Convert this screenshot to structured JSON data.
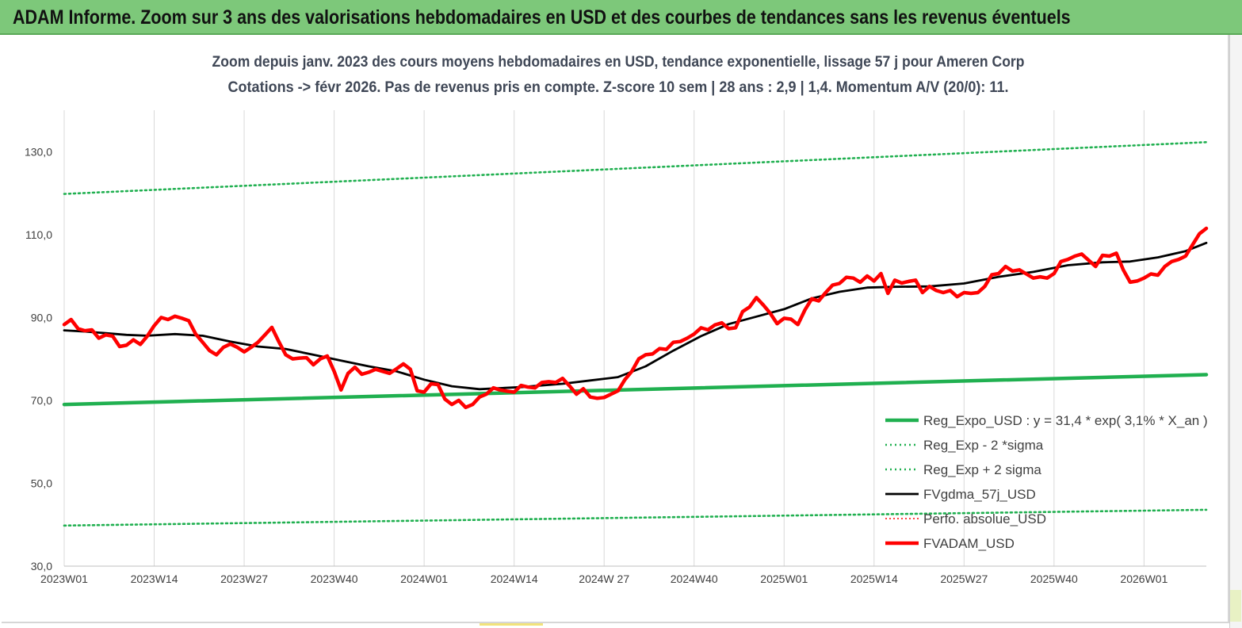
{
  "banner": {
    "title": "ADAM Informe. Zoom sur 3 ans des valorisations hebdomadaires en USD et des courbes de tendances sans les revenus éventuels"
  },
  "chart_data": {
    "type": "line",
    "title_line1": "Zoom depuis janv. 2023 des cours moyens hebdomadaires en USD, tendance exponentielle, lissage 57 j pour Ameren Corp",
    "title_line2": "Cotations -> févr 2026.  Pas de revenus pris en compte. Z-score 10 sem  | 28 ans : 2,9  | 1,4. Momentum A/V (20/0): 11.",
    "xlabel": "",
    "ylabel": "",
    "ylim": [
      30,
      140
    ],
    "yticks": [
      "30,0",
      "50,0",
      "70,0",
      "90,0",
      "110,0",
      "130,0"
    ],
    "ytick_values": [
      30,
      50,
      70,
      90,
      110,
      130
    ],
    "grid": "vertical",
    "x_categories": [
      "2023W01",
      "2023W14",
      "2023W27",
      "2023W40",
      "2024W01",
      "2024W14",
      "2024W 27",
      "2024W40",
      "2025W01",
      "2025W14",
      "2025W27",
      "2025W40",
      "2026W01"
    ],
    "x_category_weeks": [
      0,
      13,
      26,
      39,
      52,
      65,
      78,
      91,
      104,
      117,
      130,
      143,
      156
    ],
    "x_max_week": 165,
    "legend_placement": "bottom-right",
    "series": [
      {
        "name": "Reg_Expo_USD : y = 31,4 * exp( 3,1% *  X_an )",
        "color": "#20b050",
        "style": "solid-thick",
        "points": [
          [
            0,
            69.0
          ],
          [
            165,
            76.2
          ]
        ]
      },
      {
        "name": "Reg_Exp - 2 *sigma",
        "color": "#20b050",
        "style": "dotted",
        "points": [
          [
            0,
            39.8
          ],
          [
            165,
            43.6
          ]
        ]
      },
      {
        "name": "Reg_Exp + 2 sigma",
        "color": "#20b050",
        "style": "dotted",
        "points": [
          [
            0,
            119.8
          ],
          [
            165,
            132.3
          ]
        ]
      },
      {
        "name": "FVgdma_57j_USD",
        "color": "#000000",
        "style": "solid",
        "points": [
          [
            0,
            86.9
          ],
          [
            3,
            86.6
          ],
          [
            6,
            86.2
          ],
          [
            9,
            85.8
          ],
          [
            12,
            85.6
          ],
          [
            16,
            86.0
          ],
          [
            20,
            85.6
          ],
          [
            24,
            84.2
          ],
          [
            28,
            83.0
          ],
          [
            32,
            82.4
          ],
          [
            36,
            81.0
          ],
          [
            40,
            79.6
          ],
          [
            44,
            78.2
          ],
          [
            48,
            77.0
          ],
          [
            52,
            75.0
          ],
          [
            56,
            73.4
          ],
          [
            60,
            72.7
          ],
          [
            66,
            73.2
          ],
          [
            72,
            74.0
          ],
          [
            76,
            74.8
          ],
          [
            80,
            75.6
          ],
          [
            84,
            78.2
          ],
          [
            88,
            82.0
          ],
          [
            92,
            85.5
          ],
          [
            96,
            88.4
          ],
          [
            100,
            90.2
          ],
          [
            104,
            92.0
          ],
          [
            108,
            94.6
          ],
          [
            112,
            96.2
          ],
          [
            116,
            97.2
          ],
          [
            120,
            97.4
          ],
          [
            125,
            97.5
          ],
          [
            130,
            98.2
          ],
          [
            135,
            99.8
          ],
          [
            140,
            101.0
          ],
          [
            145,
            102.6
          ],
          [
            150,
            103.3
          ],
          [
            154,
            103.5
          ],
          [
            158,
            104.5
          ],
          [
            162,
            106.0
          ],
          [
            165,
            108.0
          ]
        ]
      },
      {
        "name": "Perfo. absolue_USD",
        "color": "#ff0000",
        "style": "dotted-thin",
        "points": []
      },
      {
        "name": "FVADAM_USD",
        "color": "#ff0000",
        "style": "solid-thick",
        "points": [
          [
            0,
            88.3
          ],
          [
            1,
            89.5
          ],
          [
            2,
            87.3
          ],
          [
            3,
            86.8
          ],
          [
            4,
            87.0
          ],
          [
            5,
            85.0
          ],
          [
            6,
            85.8
          ],
          [
            7,
            85.5
          ],
          [
            8,
            83.0
          ],
          [
            9,
            83.3
          ],
          [
            10,
            84.6
          ],
          [
            11,
            83.5
          ],
          [
            12,
            85.5
          ],
          [
            13,
            88.0
          ],
          [
            14,
            90.0
          ],
          [
            15,
            89.5
          ],
          [
            16,
            90.3
          ],
          [
            17,
            89.8
          ],
          [
            18,
            89.2
          ],
          [
            19,
            86.0
          ],
          [
            20,
            84.0
          ],
          [
            21,
            82.0
          ],
          [
            22,
            81.0
          ],
          [
            23,
            82.8
          ],
          [
            24,
            83.6
          ],
          [
            25,
            82.8
          ],
          [
            26,
            81.7
          ],
          [
            27,
            82.8
          ],
          [
            28,
            84.0
          ],
          [
            29,
            85.8
          ],
          [
            30,
            87.6
          ],
          [
            31,
            84.2
          ],
          [
            32,
            81.0
          ],
          [
            33,
            80.0
          ],
          [
            34,
            80.2
          ],
          [
            35,
            80.3
          ],
          [
            36,
            78.6
          ],
          [
            37,
            80.0
          ],
          [
            38,
            80.7
          ],
          [
            39,
            77.0
          ],
          [
            40,
            72.5
          ],
          [
            41,
            76.5
          ],
          [
            42,
            78.0
          ],
          [
            43,
            76.3
          ],
          [
            44,
            76.8
          ],
          [
            45,
            77.5
          ],
          [
            46,
            77.0
          ],
          [
            47,
            76.5
          ],
          [
            48,
            77.6
          ],
          [
            49,
            78.8
          ],
          [
            50,
            77.5
          ],
          [
            51,
            72.3
          ],
          [
            52,
            72.0
          ],
          [
            53,
            74.0
          ],
          [
            54,
            73.8
          ],
          [
            55,
            70.3
          ],
          [
            56,
            69.0
          ],
          [
            57,
            70.0
          ],
          [
            58,
            68.3
          ],
          [
            59,
            69.0
          ],
          [
            60,
            70.8
          ],
          [
            61,
            71.5
          ],
          [
            62,
            73.0
          ],
          [
            63,
            72.5
          ],
          [
            64,
            72.2
          ],
          [
            65,
            72.0
          ],
          [
            66,
            73.6
          ],
          [
            67,
            73.2
          ],
          [
            68,
            73.0
          ],
          [
            69,
            74.3
          ],
          [
            70,
            74.5
          ],
          [
            71,
            74.3
          ],
          [
            72,
            75.3
          ],
          [
            73,
            73.5
          ],
          [
            74,
            71.5
          ],
          [
            75,
            72.8
          ],
          [
            76,
            70.8
          ],
          [
            77,
            70.5
          ],
          [
            78,
            70.7
          ],
          [
            79,
            71.5
          ],
          [
            80,
            72.3
          ],
          [
            81,
            75.0
          ],
          [
            82,
            77.0
          ],
          [
            83,
            80.0
          ],
          [
            84,
            81.0
          ],
          [
            85,
            81.2
          ],
          [
            86,
            82.5
          ],
          [
            87,
            82.3
          ],
          [
            88,
            84.0
          ],
          [
            89,
            84.2
          ],
          [
            90,
            85.0
          ],
          [
            91,
            86.0
          ],
          [
            92,
            87.5
          ],
          [
            93,
            87.0
          ],
          [
            94,
            88.2
          ],
          [
            95,
            88.7
          ],
          [
            96,
            87.3
          ],
          [
            97,
            87.5
          ],
          [
            98,
            91.4
          ],
          [
            99,
            92.5
          ],
          [
            100,
            94.8
          ],
          [
            101,
            93.0
          ],
          [
            102,
            91.0
          ],
          [
            103,
            88.5
          ],
          [
            104,
            89.8
          ],
          [
            105,
            89.6
          ],
          [
            106,
            88.3
          ],
          [
            107,
            91.8
          ],
          [
            108,
            94.5
          ],
          [
            109,
            94.0
          ],
          [
            110,
            96.0
          ],
          [
            111,
            97.8
          ],
          [
            112,
            98.2
          ],
          [
            113,
            99.7
          ],
          [
            114,
            99.5
          ],
          [
            115,
            98.5
          ],
          [
            116,
            100.0
          ],
          [
            117,
            98.8
          ],
          [
            118,
            100.6
          ],
          [
            119,
            95.8
          ],
          [
            120,
            99.0
          ],
          [
            121,
            98.3
          ],
          [
            122,
            98.7
          ],
          [
            123,
            99.0
          ],
          [
            124,
            96.0
          ],
          [
            125,
            97.5
          ],
          [
            126,
            96.5
          ],
          [
            127,
            96.0
          ],
          [
            128,
            96.5
          ],
          [
            129,
            95.0
          ],
          [
            130,
            96.0
          ],
          [
            131,
            95.8
          ],
          [
            132,
            96.0
          ],
          [
            133,
            97.5
          ],
          [
            134,
            100.3
          ],
          [
            135,
            100.6
          ],
          [
            136,
            102.3
          ],
          [
            137,
            101.2
          ],
          [
            138,
            101.5
          ],
          [
            139,
            100.5
          ],
          [
            140,
            99.5
          ],
          [
            141,
            99.8
          ],
          [
            142,
            99.5
          ],
          [
            143,
            100.6
          ],
          [
            144,
            103.5
          ],
          [
            145,
            104.0
          ],
          [
            146,
            104.8
          ],
          [
            147,
            105.3
          ],
          [
            148,
            103.8
          ],
          [
            149,
            102.3
          ],
          [
            150,
            105.0
          ],
          [
            151,
            104.8
          ],
          [
            152,
            105.5
          ],
          [
            153,
            101.5
          ],
          [
            154,
            98.5
          ],
          [
            155,
            98.8
          ],
          [
            156,
            99.5
          ],
          [
            157,
            100.5
          ],
          [
            158,
            100.2
          ],
          [
            159,
            102.3
          ],
          [
            160,
            103.5
          ],
          [
            161,
            104.0
          ],
          [
            162,
            104.8
          ],
          [
            163,
            107.5
          ],
          [
            164,
            110.2
          ],
          [
            165,
            111.5
          ]
        ]
      }
    ]
  }
}
